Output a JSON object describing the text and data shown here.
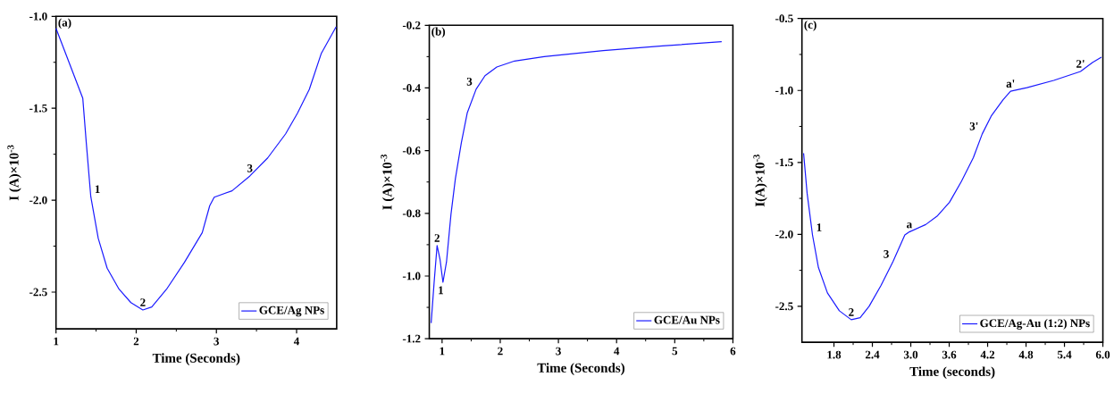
{
  "chart_data": [
    {
      "type": "line",
      "xlabel": "Time (Seconds)",
      "ylabel": "I (A)×10$^{-3}$",
      "xlim": [
        1,
        4.5
      ],
      "ylim": [
        -2.7,
        -1.0
      ],
      "xticks": [
        1,
        2,
        3,
        4
      ],
      "yticks": [
        {
          "value": -2.5,
          "label": "-2.5"
        },
        {
          "value": -2.0,
          "label": "-2.0"
        },
        {
          "value": -1.5,
          "label": "-1.5"
        },
        {
          "value": -1.0,
          "label": "-1.0"
        }
      ],
      "legend": "bottom right",
      "x": [
        1.0,
        1.334,
        1.378,
        1.434,
        1.527,
        1.638,
        1.786,
        1.934,
        2.083,
        2.194,
        2.379,
        2.602,
        2.824,
        2.917,
        2.973,
        3.195,
        3.418,
        3.64,
        3.862,
        4.011,
        4.159,
        4.307,
        4.493
      ],
      "series": [
        {
          "name": "GCE/Ag NPs",
          "color": "#1a1aff",
          "values": [
            -1.065,
            -1.446,
            -1.689,
            -1.981,
            -2.208,
            -2.37,
            -2.484,
            -2.557,
            -2.597,
            -2.581,
            -2.484,
            -2.338,
            -2.176,
            -2.03,
            -1.984,
            -1.949,
            -1.868,
            -1.77,
            -1.64,
            -1.527,
            -1.397,
            -1.203,
            -1.057
          ]
        }
      ],
      "annotations": [
        "(a)",
        {
          "text": "1",
          "x": 1.434,
          "y": -1.981
        },
        {
          "text": "2",
          "x": 2.083,
          "y": -2.597
        },
        {
          "text": "3",
          "x": 3.418,
          "y": -1.868
        }
      ]
    },
    {
      "type": "line",
      "xlabel": "Time (Seconds)",
      "ylabel": "I (A)×10$^{-3}$",
      "xlim": [
        0.78,
        6
      ],
      "ylim": [
        -1.2,
        -0.2
      ],
      "xticks": [
        1,
        2,
        3,
        4,
        5,
        6
      ],
      "yticks": [
        -1.2,
        {
          "value": -1.0,
          "label": "-1.0"
        },
        -0.8,
        -0.6,
        -0.4,
        -0.2
      ],
      "legend": "bottom right",
      "x": [
        0.812,
        0.863,
        0.914,
        0.964,
        1.015,
        1.076,
        1.153,
        1.229,
        1.331,
        1.432,
        1.585,
        1.738,
        1.941,
        2.246,
        2.755,
        3.772,
        4.789,
        5.807
      ],
      "series": [
        {
          "name": "GCE/Au NPs",
          "color": "#1a1aff",
          "values": [
            -1.15,
            -1.021,
            -0.903,
            -0.946,
            -1.02,
            -0.955,
            -0.803,
            -0.689,
            -0.575,
            -0.48,
            -0.404,
            -0.361,
            -0.333,
            -0.314,
            -0.3,
            -0.281,
            -0.266,
            -0.252
          ]
        }
      ],
      "annotations": [
        "(b)",
        {
          "text": "1",
          "x": 0.863,
          "y": -1.021
        },
        {
          "text": "2",
          "x": 0.914,
          "y": -0.903
        },
        {
          "text": "3",
          "x": 1.585,
          "y": -0.404
        }
      ]
    },
    {
      "type": "line",
      "xlabel": "Time (seconds)",
      "ylabel": "I(A)×10$^{-3}$",
      "xlim": [
        1.3,
        6.0
      ],
      "ylim": [
        -2.75,
        -0.5
      ],
      "xticks": [
        1.8,
        2.4,
        {
          "value": 3.0,
          "label": "3.0"
        },
        3.6,
        4.2,
        4.8,
        5.4,
        {
          "value": 6.0,
          "label": "6.0"
        }
      ],
      "yticks": [
        -2.5,
        {
          "value": -2.0,
          "label": "-2.0"
        },
        -1.5,
        {
          "value": -1.0,
          "label": "-1.0"
        },
        -0.5
      ],
      "legend": "bottom right",
      "x": [
        1.326,
        1.381,
        1.465,
        1.558,
        1.698,
        1.884,
        2.07,
        2.209,
        2.349,
        2.535,
        2.721,
        2.907,
        2.977,
        3.233,
        3.419,
        3.605,
        3.791,
        3.977,
        4.116,
        4.256,
        4.442,
        4.558,
        4.814,
        5.233,
        5.651,
        5.837,
        5.977
      ],
      "series": [
        {
          "name": "GCE/Ag-Au (1:2) NPs",
          "color": "#1a1aff",
          "values": [
            -1.436,
            -1.715,
            -2.004,
            -2.231,
            -2.407,
            -2.531,
            -2.593,
            -2.579,
            -2.5,
            -2.355,
            -2.19,
            -2.004,
            -1.983,
            -1.932,
            -1.87,
            -1.777,
            -1.632,
            -1.467,
            -1.302,
            -1.178,
            -1.064,
            -1.006,
            -0.981,
            -0.93,
            -0.868,
            -0.806,
            -0.769
          ]
        }
      ],
      "annotations": [
        "(c)",
        {
          "text": "1",
          "x": 1.465,
          "y": -2.004
        },
        {
          "text": "2",
          "x": 2.07,
          "y": -2.593
        },
        {
          "text": "3",
          "x": 2.721,
          "y": -2.19
        },
        {
          "text": "a",
          "x": 2.977,
          "y": -1.983
        },
        {
          "text": "3'",
          "x": 4.116,
          "y": -1.302
        },
        {
          "text": "a'",
          "x": 4.558,
          "y": -1.006
        },
        {
          "text": "2'",
          "x": 5.651,
          "y": -0.868
        }
      ]
    }
  ]
}
